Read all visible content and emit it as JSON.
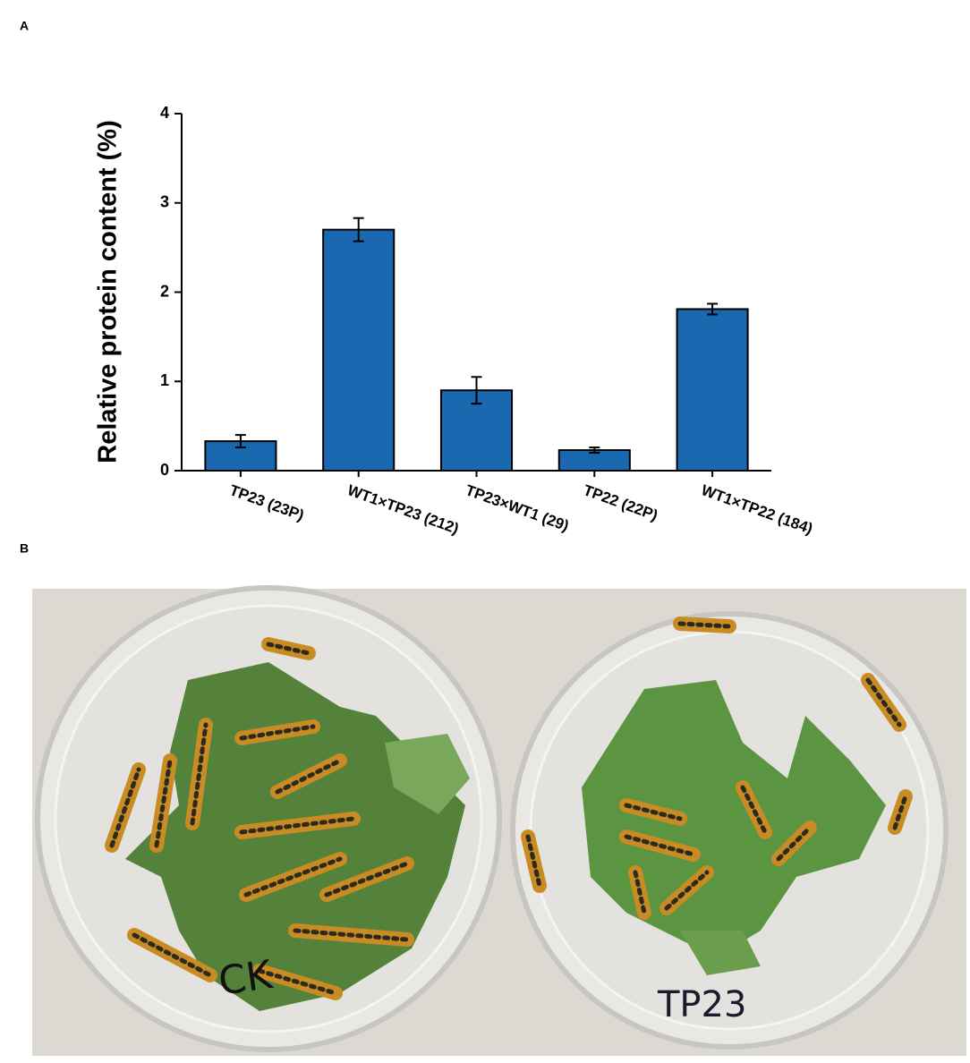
{
  "panel_labels": [
    "A",
    "B"
  ],
  "chart_data": {
    "type": "bar",
    "y_label": "Relative protein content (%)",
    "categories": [
      "TP23 (23P)",
      "WT1×TP23 (212)",
      "TP23×WT1 (29)",
      "TP22 (22P)",
      "WT1×TP22 (184)"
    ],
    "values": [
      0.33,
      2.7,
      0.9,
      0.23,
      1.81
    ],
    "errors": [
      0.07,
      0.13,
      0.15,
      0.03,
      0.06
    ],
    "color": "#1a69b0",
    "ylim": [
      0,
      4
    ],
    "yticks": [
      0,
      1,
      2,
      3,
      4
    ]
  },
  "photo_labels": [
    "CK",
    "TP23"
  ]
}
